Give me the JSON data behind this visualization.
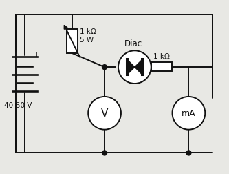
{
  "bg_color": "#e8e8e4",
  "line_color": "#111111",
  "battery_label": "40-50 V",
  "battery_plus": "+",
  "pot_label1": "1 kΩ",
  "pot_label2": "5 W",
  "diac_label": "Diac",
  "res_label": "1 kΩ",
  "voltmeter_label": "V",
  "ammeter_label": "mA",
  "lw": 1.4
}
